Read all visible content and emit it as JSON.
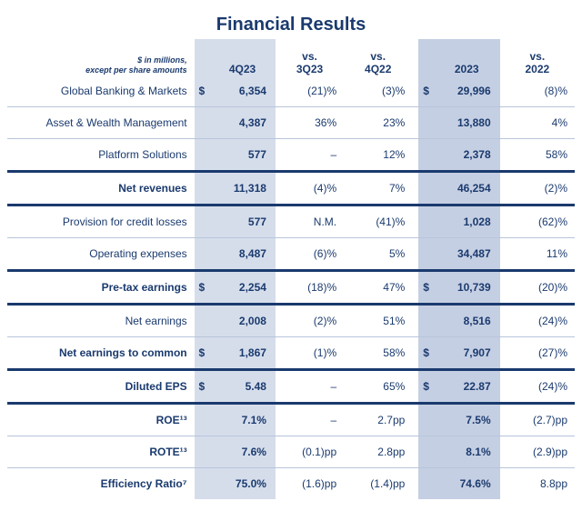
{
  "title": "Financial Results",
  "subtitle_line1": "$ in millions,",
  "subtitle_line2": "except per share amounts",
  "columns": {
    "c1": "4Q23",
    "c2a": "vs.",
    "c2b": "3Q23",
    "c3a": "vs.",
    "c3b": "4Q22",
    "c4": "2023",
    "c5a": "vs.",
    "c5b": "2022"
  },
  "colors": {
    "text": "#1a3a6e",
    "shade_q": "#d5ddeb",
    "shade_y": "#c5cfe3",
    "thin_line": "#b8c5da",
    "thick_border": "#1a3a6e",
    "background": "#ffffff"
  },
  "fonts": {
    "title_size_pt": 20,
    "body_size_pt": 12,
    "subtitle_size_pt": 9
  },
  "col_widths": {
    "label": 175,
    "dollar": 14,
    "num_q": 62,
    "pct": 64,
    "sep": 6,
    "num_y": 62,
    "pct_y": 70
  },
  "table_type": "financial_table",
  "rows": [
    {
      "label": "Global Banking & Markets",
      "bold": false,
      "d1": "$",
      "q": "6,354",
      "vs3q": "(21)%",
      "vs4q": "(3)%",
      "d2": "$",
      "y": "29,996",
      "vsY": "(8)%",
      "border": "thin"
    },
    {
      "label": "Asset & Wealth Management",
      "bold": false,
      "d1": "",
      "q": "4,387",
      "vs3q": "36%",
      "vs4q": "23%",
      "d2": "",
      "y": "13,880",
      "vsY": "4%",
      "border": "thin"
    },
    {
      "label": "Platform Solutions",
      "bold": false,
      "d1": "",
      "q": "577",
      "vs3q": "–",
      "vs4q": "12%",
      "d2": "",
      "y": "2,378",
      "vsY": "58%",
      "border": "none"
    },
    {
      "label": "Net revenues",
      "bold": true,
      "d1": "",
      "q": "11,318",
      "vs3q": "(4)%",
      "vs4q": "7%",
      "d2": "",
      "y": "46,254",
      "vsY": "(2)%",
      "border": "thick"
    },
    {
      "label": "Provision for credit losses",
      "bold": false,
      "d1": "",
      "q": "577",
      "vs3q": "N.M.",
      "vs4q": "(41)%",
      "d2": "",
      "y": "1,028",
      "vsY": "(62)%",
      "border": "thin"
    },
    {
      "label": "Operating expenses",
      "bold": false,
      "d1": "",
      "q": "8,487",
      "vs3q": "(6)%",
      "vs4q": "5%",
      "d2": "",
      "y": "34,487",
      "vsY": "11%",
      "border": "none"
    },
    {
      "label": "Pre-tax earnings",
      "bold": true,
      "d1": "$",
      "q": "2,254",
      "vs3q": "(18)%",
      "vs4q": "47%",
      "d2": "$",
      "y": "10,739",
      "vsY": "(20)%",
      "border": "thick"
    },
    {
      "label": "Net earnings",
      "bold": false,
      "d1": "",
      "q": "2,008",
      "vs3q": "(2)%",
      "vs4q": "51%",
      "d2": "",
      "y": "8,516",
      "vsY": "(24)%",
      "border": "thin"
    },
    {
      "label": "Net earnings to common",
      "bold": true,
      "d1": "$",
      "q": "1,867",
      "vs3q": "(1)%",
      "vs4q": "58%",
      "d2": "$",
      "y": "7,907",
      "vsY": "(27)%",
      "border": "none"
    },
    {
      "label": "Diluted EPS",
      "bold": true,
      "d1": "$",
      "q": "5.48",
      "vs3q": "–",
      "vs4q": "65%",
      "d2": "$",
      "y": "22.87",
      "vsY": "(24)%",
      "border": "thick"
    },
    {
      "label": "ROE¹³",
      "bold": true,
      "d1": "",
      "q": "7.1%",
      "vs3q": "–",
      "vs4q": "2.7pp",
      "d2": "",
      "y": "7.5%",
      "vsY": "(2.7)pp",
      "border": "thin"
    },
    {
      "label": "ROTE¹³",
      "bold": true,
      "d1": "",
      "q": "7.6%",
      "vs3q": "(0.1)pp",
      "vs4q": "2.8pp",
      "d2": "",
      "y": "8.1%",
      "vsY": "(2.9)pp",
      "border": "thin"
    },
    {
      "label": "Efficiency Ratio⁷",
      "bold": true,
      "d1": "",
      "q": "75.0%",
      "vs3q": "(1.6)pp",
      "vs4q": "(1.4)pp",
      "d2": "",
      "y": "74.6%",
      "vsY": "8.8pp",
      "border": "none"
    }
  ]
}
